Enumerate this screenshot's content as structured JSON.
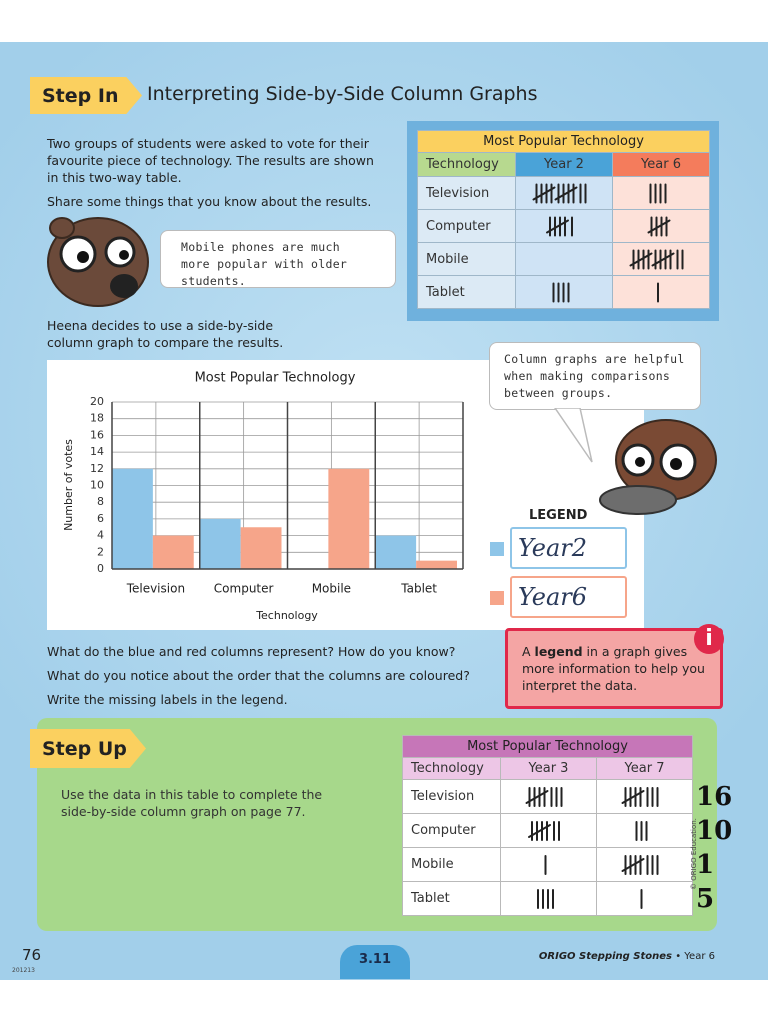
{
  "step_in": {
    "label": "Step In",
    "title": "Interpreting Side-by-Side Column Graphs"
  },
  "intro": [
    "Two groups of students were asked to vote for their favourite piece of technology. The results are shown in this two-way table.",
    "Share some things that you know about the results."
  ],
  "bubbles": [
    "Mobile phones are much more popular with older students.",
    "Column graphs are helpful when making comparisons between groups."
  ],
  "table1": {
    "title": "Most Popular Technology",
    "headers": [
      "Technology",
      "Year 2",
      "Year 6"
    ],
    "rows": [
      [
        "Television",
        12,
        4
      ],
      [
        "Computer",
        6,
        5
      ],
      [
        "Mobile",
        0,
        12
      ],
      [
        "Tablet",
        4,
        1
      ]
    ]
  },
  "chart_intro": "Heena decides to use a side-by-side column graph to compare the results.",
  "chart_data": {
    "type": "bar",
    "title": "Most Popular Technology",
    "x_label": "Technology",
    "y_label": "Number of votes",
    "categories": [
      "Television",
      "Computer",
      "Mobile",
      "Tablet"
    ],
    "series": [
      {
        "name": "Year2",
        "color": "#8ec5e8",
        "values": [
          12,
          6,
          0,
          4
        ]
      },
      {
        "name": "Year6",
        "color": "#f6a58a",
        "values": [
          4,
          5,
          12,
          1
        ]
      }
    ],
    "ylim": [
      0,
      20
    ],
    "yticks": [
      0,
      2,
      4,
      6,
      8,
      10,
      12,
      14,
      16,
      18,
      20
    ],
    "grid": true,
    "legend_title": "LEGEND"
  },
  "questions": [
    "What do the blue and red columns represent? How do you know?",
    "What do you notice about the order that the columns are coloured?",
    "Write the missing labels in the legend."
  ],
  "info": {
    "icon": "i",
    "text": [
      "A ",
      "legend",
      " in a graph gives more information to help you interpret the data."
    ]
  },
  "step_up": {
    "label": "Step Up",
    "text": "Use the data in this table to complete the side-by-side column graph on page 77."
  },
  "table2": {
    "title": "Most Popular Technology",
    "headers": [
      "Technology",
      "Year 3",
      "Year 7"
    ],
    "rows": [
      [
        "Television",
        8,
        8
      ],
      [
        "Computer",
        7,
        3
      ],
      [
        "Mobile",
        1,
        8
      ],
      [
        "Tablet",
        4,
        1
      ]
    ]
  },
  "annotations": [
    "16",
    "10",
    "1",
    "5"
  ],
  "copyright": "© ORIGO Education.",
  "footer": {
    "page": "76",
    "code": "201213",
    "lesson": "3.11",
    "brand": "ORIGO Stepping Stones",
    "grade": "• Year 6"
  }
}
